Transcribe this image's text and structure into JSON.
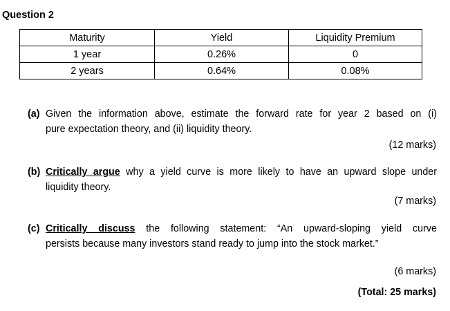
{
  "title": "Question 2",
  "table": {
    "headers": [
      "Maturity",
      "Yield",
      "Liquidity Premium"
    ],
    "rows": [
      [
        "1 year",
        "0.26%",
        "0"
      ],
      [
        "2 years",
        "0.64%",
        "0.08%"
      ]
    ]
  },
  "parts": [
    {
      "label": "(a)",
      "line1": "Given the information above, estimate the forward rate for year 2 based on (i)",
      "line2": "pure expectation theory, and (ii) liquidity theory.",
      "marks": "(12 marks)"
    },
    {
      "label": "(b)",
      "emphasis": "Critically argue",
      "line1_rest": " why a yield curve is more likely to have an upward slope under",
      "line2": "liquidity theory.",
      "marks": "(7 marks)"
    },
    {
      "label": "(c)",
      "emphasis": "Critically discuss",
      "line1_rest": " the following statement: “An upward-sloping yield curve",
      "line2": "persists because many investors stand ready to jump into the stock market.”",
      "marks": "(6 marks)"
    }
  ],
  "total": "(Total: 25 marks)"
}
